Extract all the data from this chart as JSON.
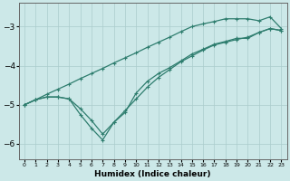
{
  "xlabel": "Humidex (Indice chaleur)",
  "background_color": "#cce8e8",
  "grid_color": "#aacccc",
  "line_color": "#2e7d6e",
  "xlim": [
    -0.5,
    23.5
  ],
  "ylim": [
    -6.4,
    -2.4
  ],
  "yticks": [
    -6,
    -5,
    -4,
    -3
  ],
  "xticks": [
    0,
    1,
    2,
    3,
    4,
    5,
    6,
    7,
    8,
    9,
    10,
    11,
    12,
    13,
    14,
    15,
    16,
    17,
    18,
    19,
    20,
    21,
    22,
    23
  ],
  "line1_x": [
    0,
    1,
    2,
    3,
    4,
    5,
    6,
    7,
    8,
    9,
    10,
    11,
    12,
    13,
    14,
    15,
    16,
    17,
    18,
    19,
    20,
    21,
    22,
    23
  ],
  "line1_y": [
    -5.0,
    -4.87,
    -4.73,
    -4.6,
    -4.47,
    -4.33,
    -4.2,
    -4.07,
    -3.93,
    -3.8,
    -3.67,
    -3.53,
    -3.4,
    -3.27,
    -3.13,
    -3.0,
    -2.93,
    -2.87,
    -2.8,
    -2.8,
    -2.8,
    -2.85,
    -2.75,
    -3.05
  ],
  "line2_x": [
    0,
    1,
    2,
    3,
    4,
    5,
    6,
    7,
    8,
    9,
    10,
    11,
    12,
    13,
    14,
    15,
    16,
    17,
    18,
    19,
    20,
    21,
    22,
    23
  ],
  "line2_y": [
    -5.0,
    -4.87,
    -4.8,
    -4.8,
    -4.85,
    -5.1,
    -5.4,
    -5.75,
    -5.45,
    -5.15,
    -4.85,
    -4.55,
    -4.3,
    -4.1,
    -3.9,
    -3.75,
    -3.6,
    -3.47,
    -3.4,
    -3.33,
    -3.27,
    -3.15,
    -3.05,
    -3.1
  ],
  "line3_x": [
    0,
    1,
    2,
    3,
    4,
    5,
    6,
    7,
    8,
    9,
    10,
    11,
    12,
    13,
    14,
    15,
    16,
    17,
    18,
    19,
    20,
    21,
    22,
    23
  ],
  "line3_y": [
    -5.0,
    -4.87,
    -4.8,
    -4.8,
    -4.85,
    -5.25,
    -5.6,
    -5.9,
    -5.45,
    -5.2,
    -4.7,
    -4.4,
    -4.2,
    -4.05,
    -3.88,
    -3.7,
    -3.58,
    -3.45,
    -3.38,
    -3.3,
    -3.3,
    -3.15,
    -3.05,
    -3.1
  ]
}
